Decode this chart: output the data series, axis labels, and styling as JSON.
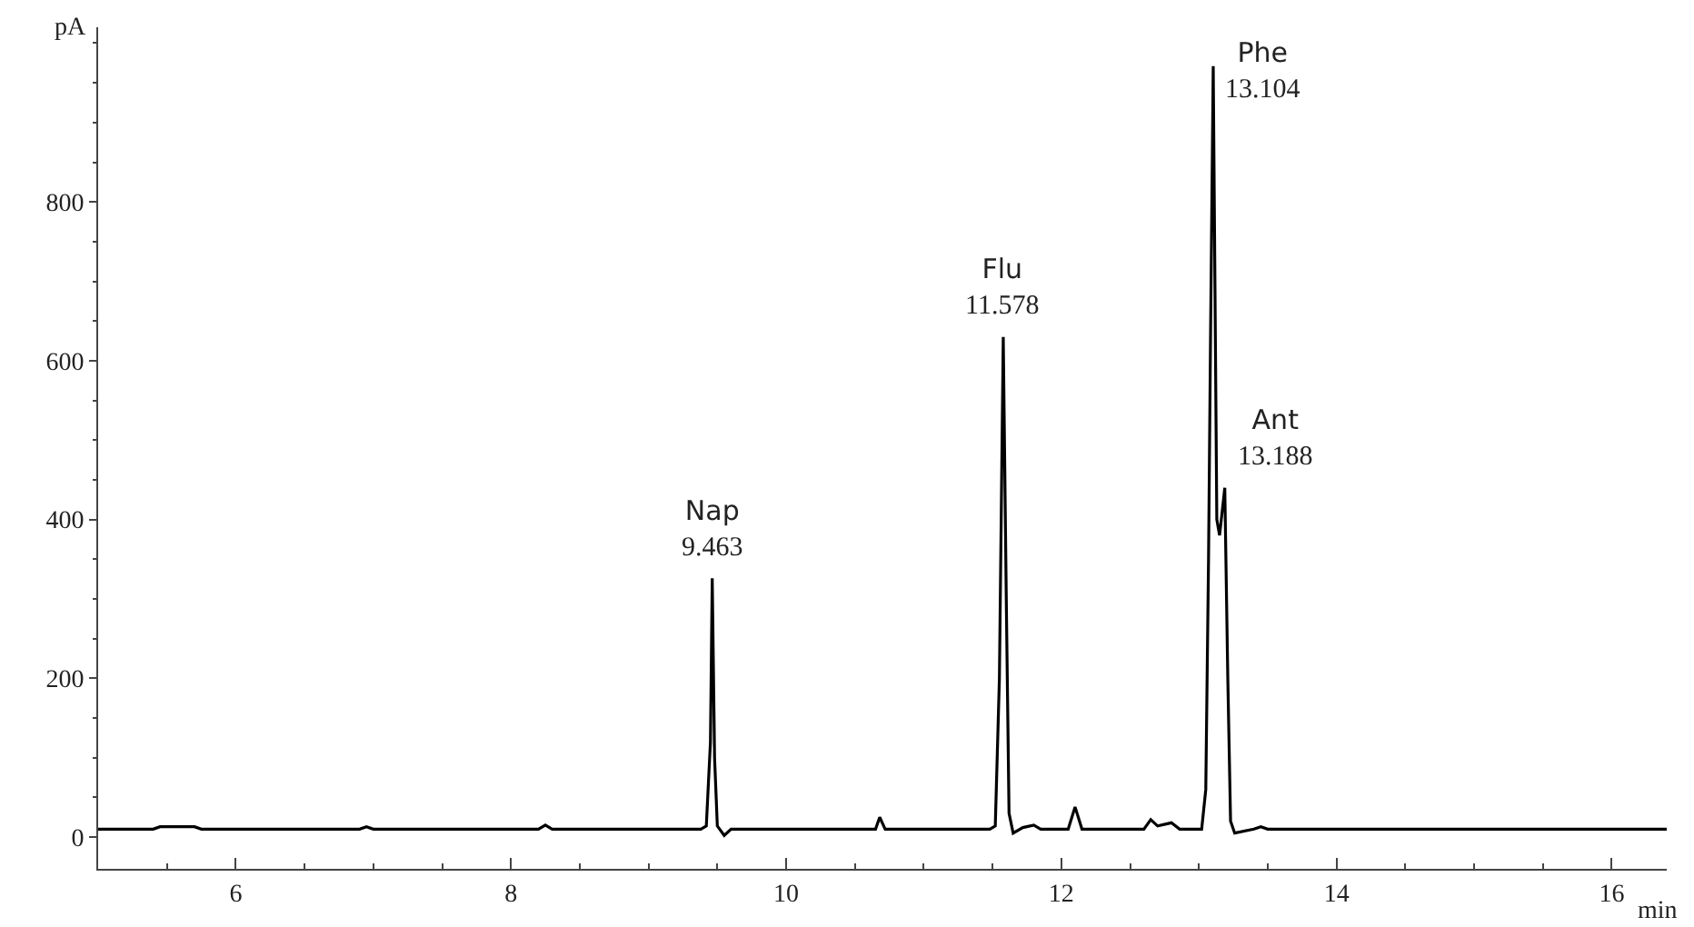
{
  "chart_data": {
    "type": "line",
    "xlabel": "min",
    "ylabel": "pA",
    "x": [
      5.0,
      5.4,
      5.45,
      5.7,
      5.75,
      6.9,
      6.95,
      7.0,
      8.2,
      8.25,
      8.3,
      9.38,
      9.42,
      9.45,
      9.463,
      9.48,
      9.5,
      9.55,
      9.6,
      10.35,
      10.65,
      10.68,
      10.72,
      11.48,
      11.52,
      11.55,
      11.578,
      11.6,
      11.62,
      11.65,
      11.72,
      11.8,
      11.85,
      12.05,
      12.1,
      12.15,
      12.6,
      12.65,
      12.7,
      12.8,
      12.86,
      13.02,
      13.05,
      13.07,
      13.085,
      13.104,
      13.13,
      13.15,
      13.188,
      13.21,
      13.23,
      13.26,
      13.4,
      13.45,
      13.5,
      16.4
    ],
    "series": [
      {
        "color": "#000000",
        "values": [
          10,
          10,
          13,
          13,
          10,
          10,
          13,
          10,
          10,
          15,
          10,
          10,
          14,
          120,
          326,
          100,
          14,
          2,
          10,
          10,
          10,
          25,
          10,
          10,
          14,
          200,
          630,
          300,
          30,
          5,
          12,
          15,
          10,
          10,
          38,
          10,
          10,
          22,
          14,
          18,
          10,
          10,
          60,
          350,
          640,
          971,
          400,
          380,
          440,
          200,
          20,
          5,
          10,
          13,
          10,
          10
        ]
      }
    ],
    "annotations": [
      {
        "text": "Nap\n9.463",
        "x": 9.463,
        "y": 326
      },
      {
        "text": "Flu\n11.578",
        "x": 11.578,
        "y": 630
      },
      {
        "text": "Phe\n13.104",
        "x": 13.104,
        "y": 971
      },
      {
        "text": "Ant\n13.188",
        "x": 13.188,
        "y": 440
      }
    ],
    "xlim": [
      5,
      16.4
    ],
    "xticks": [
      6,
      8,
      10,
      12,
      14,
      16
    ],
    "ylim": [
      -40,
      1020
    ],
    "yticks": [
      0,
      200,
      400,
      600,
      800
    ],
    "grid": false
  }
}
